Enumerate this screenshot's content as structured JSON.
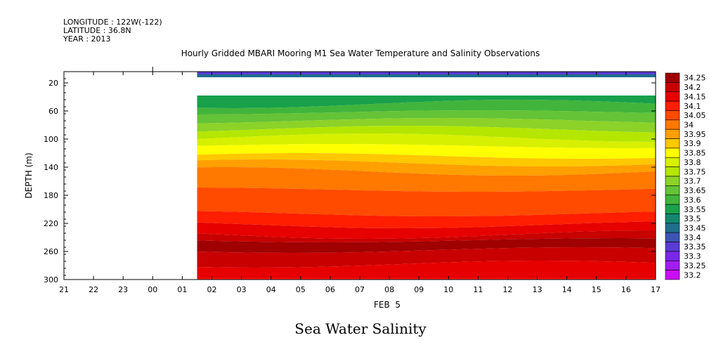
{
  "header": {
    "longitude": "LONGITUDE : 122W(-122)",
    "latitude": "LATITUDE : 36.8N",
    "year": "YEAR : 2013"
  },
  "chart_data": {
    "type": "heatmap",
    "title": "Hourly Gridded MBARI Mooring M1 Sea Water Temperature and Salinity Observations",
    "footer": "Sea Water Salinity",
    "xlabel": "FEB  5",
    "ylabel": "DEPTH (m)",
    "x_tick_labels": [
      "21",
      "22",
      "23",
      "00",
      "01",
      "02",
      "03",
      "04",
      "05",
      "06",
      "07",
      "08",
      "09",
      "10",
      "11",
      "12",
      "13",
      "14",
      "15",
      "16",
      "17"
    ],
    "y_ticks": [
      20,
      60,
      100,
      140,
      180,
      220,
      260,
      300
    ],
    "ylim": [
      300,
      4
    ],
    "data_start_hour": 4.5,
    "colorbar": {
      "levels": [
        "34.25",
        "34.2",
        "34.15",
        "34.1",
        "34.05",
        "34",
        "33.95",
        "33.9",
        "33.85",
        "33.8",
        "33.75",
        "33.7",
        "33.65",
        "33.6",
        "33.55",
        "33.5",
        "33.45",
        "33.4",
        "33.35",
        "33.3",
        "33.25",
        "33.2"
      ],
      "colors": [
        "#a00000",
        "#c80000",
        "#e60000",
        "#ff1e00",
        "#ff4b00",
        "#ff7800",
        "#ffa000",
        "#ffc800",
        "#ffff00",
        "#d7f000",
        "#b4e600",
        "#8cd228",
        "#64c336",
        "#41b43c",
        "#19a04b",
        "#14876e",
        "#1e6e8c",
        "#3c55b4",
        "#5a3cd2",
        "#7828e6",
        "#a01ef0",
        "#c80ff5"
      ]
    },
    "bands": [
      {
        "depth_top": 4,
        "depth_bottom": 8,
        "value": "33.35"
      },
      {
        "depth_top": 8,
        "depth_bottom": 12,
        "value": "33.45"
      },
      {
        "depth_top": 38,
        "depth_bottom": 50,
        "value": "33.55"
      },
      {
        "depth_top": 50,
        "depth_bottom": 62,
        "value": "33.6"
      },
      {
        "depth_top": 62,
        "depth_bottom": 74,
        "value": "33.65"
      },
      {
        "depth_top": 74,
        "depth_bottom": 86,
        "value": "33.7"
      },
      {
        "depth_top": 86,
        "depth_bottom": 98,
        "value": "33.75"
      },
      {
        "depth_top": 98,
        "depth_bottom": 110,
        "value": "33.8"
      },
      {
        "depth_top": 110,
        "depth_bottom": 124,
        "value": "33.85"
      },
      {
        "depth_top": 124,
        "depth_bottom": 134,
        "value": "33.9"
      },
      {
        "depth_top": 134,
        "depth_bottom": 146,
        "value": "33.95"
      },
      {
        "depth_top": 146,
        "depth_bottom": 172,
        "value": "34"
      },
      {
        "depth_top": 172,
        "depth_bottom": 206,
        "value": "34.05"
      },
      {
        "depth_top": 206,
        "depth_bottom": 222,
        "value": "34.1"
      },
      {
        "depth_top": 222,
        "depth_bottom": 236,
        "value": "34.15"
      },
      {
        "depth_top": 236,
        "depth_bottom": 244,
        "value": "34.2"
      },
      {
        "depth_top": 244,
        "depth_bottom": 258,
        "value": "34.25"
      },
      {
        "depth_top": 258,
        "depth_bottom": 278,
        "value": "34.2"
      },
      {
        "depth_top": 278,
        "depth_bottom": 298,
        "value": "34.15"
      },
      {
        "depth_top": 298,
        "depth_bottom": 300,
        "value": "34.1"
      }
    ]
  }
}
